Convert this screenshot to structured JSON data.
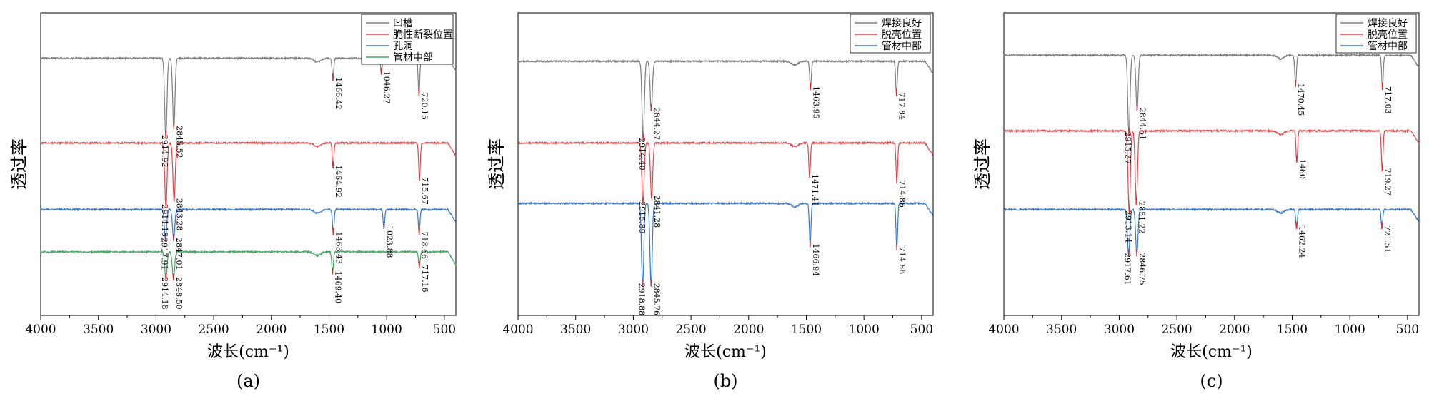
{
  "colors": {
    "gray": "#7f7f7f",
    "red": "#e0474c",
    "blue": "#3a78c9",
    "green": "#4aa56b",
    "marker": "#e6262d"
  },
  "chart_data": [
    {
      "type": "line",
      "panel_label": "(a)",
      "xlabel": "波长(cm⁻¹)",
      "ylabel": "透过率",
      "xlim": [
        4000,
        400
      ],
      "x_ticks": [
        4000,
        3500,
        3000,
        2500,
        2000,
        1500,
        1000,
        500
      ],
      "ylim": [
        0,
        100
      ],
      "legend": "top-right",
      "series": [
        {
          "name": "管材中部",
          "color": "green",
          "baseline": 21,
          "peaks": [
            {
              "x": 2914.18,
              "label": "2914.18",
              "depth": 9
            },
            {
              "x": 2848.5,
              "label": "2848.50",
              "depth": 9
            },
            {
              "x": 1469.4,
              "label": "1469.40",
              "depth": 7
            },
            {
              "x": 717.16,
              "label": "717.16",
              "depth": 5
            }
          ]
        },
        {
          "name": "孔洞",
          "color": "blue",
          "baseline": 35,
          "peaks": [
            {
              "x": 2917.91,
              "label": "2917.91",
              "depth": 10
            },
            {
              "x": 2847.01,
              "label": "2847.01",
              "depth": 10
            },
            {
              "x": 1463.43,
              "label": "1463.43",
              "depth": 8
            },
            {
              "x": 1023.88,
              "label": "1023.88",
              "depth": 6
            },
            {
              "x": 718.66,
              "label": "718.66",
              "depth": 8
            }
          ]
        },
        {
          "name": "脆性断裂位置",
          "color": "red",
          "baseline": 57,
          "peaks": [
            {
              "x": 2914.18,
              "label": "2914.18",
              "depth": 21
            },
            {
              "x": 2843.28,
              "label": "2843.28",
              "depth": 19
            },
            {
              "x": 1464.92,
              "label": "1464.92",
              "depth": 8
            },
            {
              "x": 715.67,
              "label": "715.67",
              "depth": 12
            }
          ]
        },
        {
          "name": "凹槽",
          "color": "gray",
          "baseline": 85,
          "peaks": [
            {
              "x": 2914.92,
              "label": "2914.92",
              "depth": 26
            },
            {
              "x": 2845.52,
              "label": "2845.52",
              "depth": 23
            },
            {
              "x": 1466.42,
              "label": "1466.42",
              "depth": 7
            },
            {
              "x": 1046.27,
              "label": "1046.27",
              "depth": 5
            },
            {
              "x": 720.15,
              "label": "720.15",
              "depth": 12
            }
          ]
        }
      ]
    },
    {
      "type": "line",
      "panel_label": "(b)",
      "xlabel": "波长(cm⁻¹)",
      "ylabel": "透过率",
      "xlim": [
        4000,
        400
      ],
      "x_ticks": [
        4000,
        3500,
        3000,
        2500,
        2000,
        1500,
        1000,
        500
      ],
      "ylim": [
        0,
        100
      ],
      "legend": "top-right",
      "series": [
        {
          "name": "管材中部",
          "color": "blue",
          "baseline": 37,
          "peaks": [
            {
              "x": 2918.88,
              "label": "2918.88",
              "depth": 27
            },
            {
              "x": 2845.76,
              "label": "2845.76",
              "depth": 27
            },
            {
              "x": 1466.94,
              "label": "1466.94",
              "depth": 14
            },
            {
              "x": 714.86,
              "label": "714.86",
              "depth": 15
            }
          ]
        },
        {
          "name": "脱壳位置",
          "color": "red",
          "baseline": 57,
          "peaks": [
            {
              "x": 2915.89,
              "label": "2915.89",
              "depth": 20
            },
            {
              "x": 2841.28,
              "label": "2841.28",
              "depth": 18
            },
            {
              "x": 1471.41,
              "label": "1471.41",
              "depth": 11
            },
            {
              "x": 714.86,
              "label": "714.86",
              "depth": 13
            }
          ]
        },
        {
          "name": "焊接良好",
          "color": "gray",
          "baseline": 84,
          "peaks": [
            {
              "x": 2914.4,
              "label": "2914.40",
              "depth": 26
            },
            {
              "x": 2844.27,
              "label": "2844.27",
              "depth": 16
            },
            {
              "x": 1463.95,
              "label": "1463.95",
              "depth": 9
            },
            {
              "x": 717.84,
              "label": "717.84",
              "depth": 11
            }
          ]
        }
      ]
    },
    {
      "type": "line",
      "panel_label": "(c)",
      "xlabel": "波长(cm⁻¹)",
      "ylabel": "透过率",
      "xlim": [
        4000,
        400
      ],
      "x_ticks": [
        4000,
        3500,
        3000,
        2500,
        2000,
        1500,
        1000,
        500
      ],
      "ylim": [
        0,
        100
      ],
      "legend": "top-right",
      "series": [
        {
          "name": "管材中部",
          "color": "blue",
          "baseline": 35,
          "peaks": [
            {
              "x": 2917.61,
              "label": "2917.61",
              "depth": 15
            },
            {
              "x": 2846.75,
              "label": "2846.75",
              "depth": 15
            },
            {
              "x": 1462.24,
              "label": "1462.24",
              "depth": 6
            },
            {
              "x": 721.51,
              "label": "721.51",
              "depth": 6
            }
          ]
        },
        {
          "name": "脱壳位置",
          "color": "red",
          "baseline": 61,
          "peaks": [
            {
              "x": 2913.14,
              "label": "2913.14",
              "depth": 27
            },
            {
              "x": 2851.22,
              "label": "2851.22",
              "depth": 24
            },
            {
              "x": 1460,
              "label": "1460",
              "depth": 10
            },
            {
              "x": 719.27,
              "label": "719.27",
              "depth": 13
            }
          ]
        },
        {
          "name": "焊接良好",
          "color": "gray",
          "baseline": 86,
          "peaks": [
            {
              "x": 2915.37,
              "label": "2915.37",
              "depth": 26
            },
            {
              "x": 2844.51,
              "label": "2844.51",
              "depth": 18
            },
            {
              "x": 1470.45,
              "label": "1470.45",
              "depth": 10
            },
            {
              "x": 717.03,
              "label": "717.03",
              "depth": 11
            }
          ]
        }
      ]
    }
  ]
}
